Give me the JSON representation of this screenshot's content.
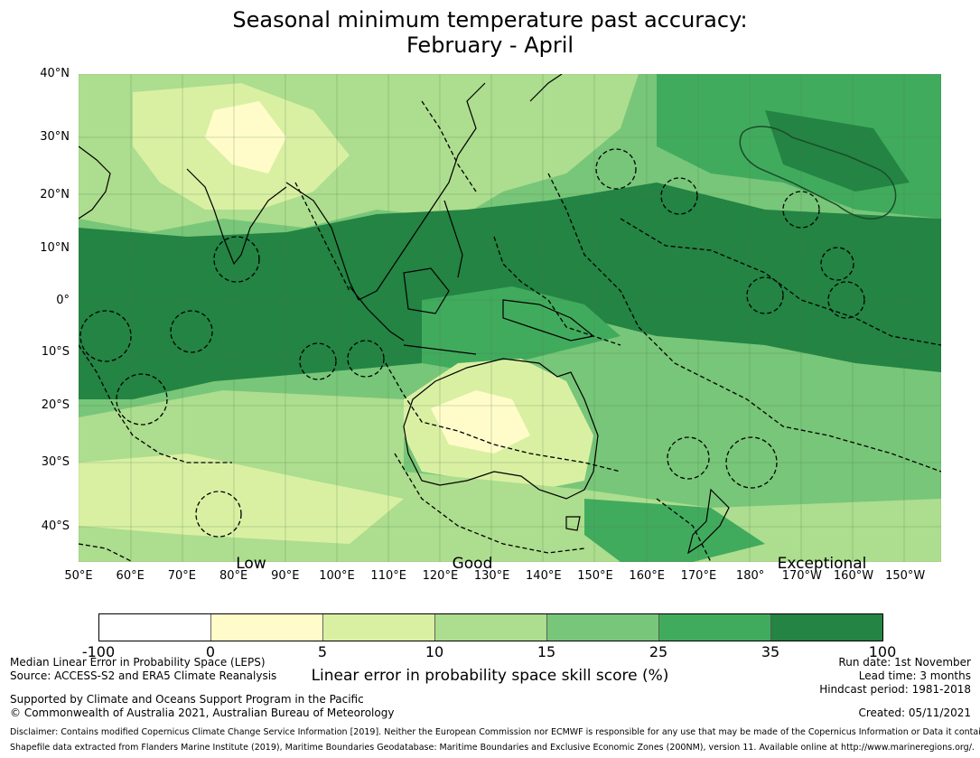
{
  "title_line1": "Seasonal minimum temperature past accuracy:",
  "title_line2": "February - April",
  "lat_labels": [
    "40°N",
    "30°N",
    "20°N",
    "10°N",
    "0°",
    "10°S",
    "20°S",
    "30°S",
    "40°S"
  ],
  "lon_labels": [
    "50°E",
    "60°E",
    "70°E",
    "80°E",
    "90°E",
    "100°E",
    "110°E",
    "120°E",
    "130°E",
    "140°E",
    "150°E",
    "160°E",
    "170°E",
    "180°",
    "170°W",
    "160°W",
    "150°W"
  ],
  "skill_labels": {
    "low": "Low",
    "good": "Good",
    "exceptional": "Exceptional"
  },
  "colorbar": {
    "ticks": [
      "-100",
      "0",
      "5",
      "10",
      "15",
      "25",
      "35",
      "100"
    ],
    "colors": [
      "#ffffff",
      "#fffcc9",
      "#d9f0a3",
      "#addd8e",
      "#78c679",
      "#41ab5d",
      "#238443"
    ],
    "label": "Linear error in probability space skill score (%)"
  },
  "footer_left": {
    "line1": "Median Linear Error in Probability Space (LEPS)",
    "line2": "Source: ACCESS-S2 and ERA5 Climate Reanalysis",
    "line3": "Supported by Climate and Oceans Support Program in the Pacific",
    "line4": "© Commonwealth of Australia 2021, Australian Bureau of Meteorology"
  },
  "footer_right": {
    "run_date": "Run date: 1st November",
    "lead_time": "Lead time: 3 months",
    "hindcast": "Hindcast period: 1981-2018",
    "created": "Created: 05/11/2021"
  },
  "disclaimer": "Disclaimer: Contains modified Copernicus Climate Change Service Information [2019]. Neither the European Commission nor ECMWF is responsible for any use that may be made of the Copernicus Information or Data it contains.",
  "shapefile_note": "Shapefile data extracted from Flanders Marine Institute (2019), Maritime Boundaries Geodatabase: Maritime Boundaries and Exclusive Economic Zones (200NM), version 11. Available online at http://www.marineregions.org/."
}
